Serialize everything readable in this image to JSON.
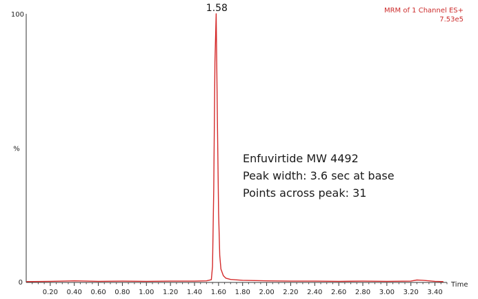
{
  "chart_data": {
    "type": "line",
    "header": {
      "line1": "MRM of 1 Channel ES+",
      "line2": "7.53e5",
      "color": "#cc2b2b"
    },
    "peak_label": "1.58",
    "xlabel": "Time",
    "ylabel": "%",
    "y_tick_labels": [
      "0",
      "100"
    ],
    "xlim": [
      0.0,
      3.5
    ],
    "ylim": [
      0,
      100
    ],
    "x_ticks": [
      0.2,
      0.4,
      0.6,
      0.8,
      1.0,
      1.2,
      1.4,
      1.6,
      1.8,
      2.0,
      2.2,
      2.4,
      2.6,
      2.8,
      3.0,
      3.2,
      3.4
    ],
    "x_tick_labels": [
      "0.20",
      "0.40",
      "0.60",
      "0.80",
      "1.00",
      "1.20",
      "1.40",
      "1.60",
      "1.80",
      "2.00",
      "2.20",
      "2.40",
      "2.60",
      "2.80",
      "3.00",
      "3.20",
      "3.40"
    ],
    "series": [
      {
        "color": "#d42a2a",
        "x": [
          0.0,
          0.2,
          0.4,
          0.6,
          0.8,
          1.0,
          1.2,
          1.4,
          1.5,
          1.54,
          1.55,
          1.56,
          1.57,
          1.58,
          1.59,
          1.6,
          1.61,
          1.62,
          1.64,
          1.66,
          1.7,
          1.8,
          2.0,
          2.2,
          2.4,
          2.6,
          2.8,
          3.0,
          3.2,
          3.25,
          3.3,
          3.35,
          3.4,
          3.47
        ],
        "y": [
          0.3,
          0.4,
          0.6,
          0.4,
          0.5,
          0.4,
          0.5,
          0.5,
          0.6,
          1.0,
          6.0,
          35.0,
          82.0,
          100.0,
          62.0,
          26.0,
          10.0,
          5.0,
          2.5,
          1.6,
          1.1,
          0.8,
          0.6,
          0.5,
          0.5,
          0.4,
          0.5,
          0.4,
          0.5,
          0.9,
          0.8,
          0.6,
          0.4,
          0.3
        ]
      }
    ],
    "annotations": [
      "Enfuvirtide MW 4492",
      "Peak width: 3.6 sec at base",
      "Points across peak: 31"
    ],
    "grid": false,
    "legend": "none"
  }
}
